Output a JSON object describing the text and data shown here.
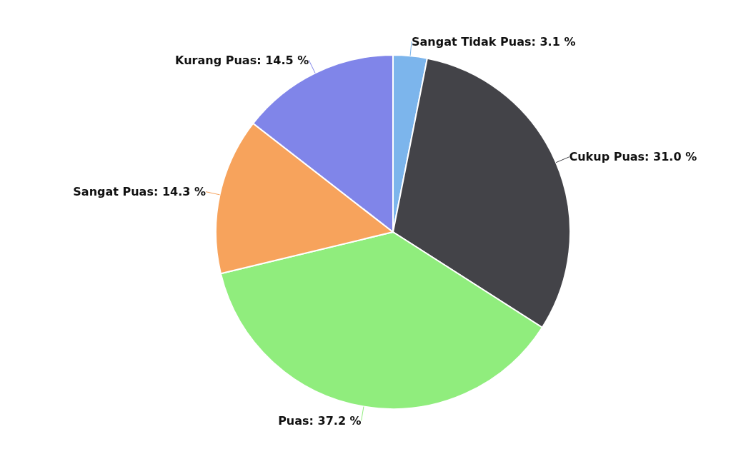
{
  "chart_data": {
    "type": "pie",
    "categories": [
      "Sangat Tidak Puas",
      "Cukup Puas",
      "Puas",
      "Sangat Puas",
      "Kurang Puas"
    ],
    "values": [
      3.1,
      31.0,
      37.2,
      14.3,
      14.5
    ],
    "value_labels": [
      "3.1 %",
      "31.0 %",
      "37.2 %",
      "14.3 %",
      "14.5 %"
    ],
    "colors": [
      "#7cb5ec",
      "#434348",
      "#90ed7d",
      "#f7a35c",
      "#8085e9"
    ],
    "legend": false
  }
}
